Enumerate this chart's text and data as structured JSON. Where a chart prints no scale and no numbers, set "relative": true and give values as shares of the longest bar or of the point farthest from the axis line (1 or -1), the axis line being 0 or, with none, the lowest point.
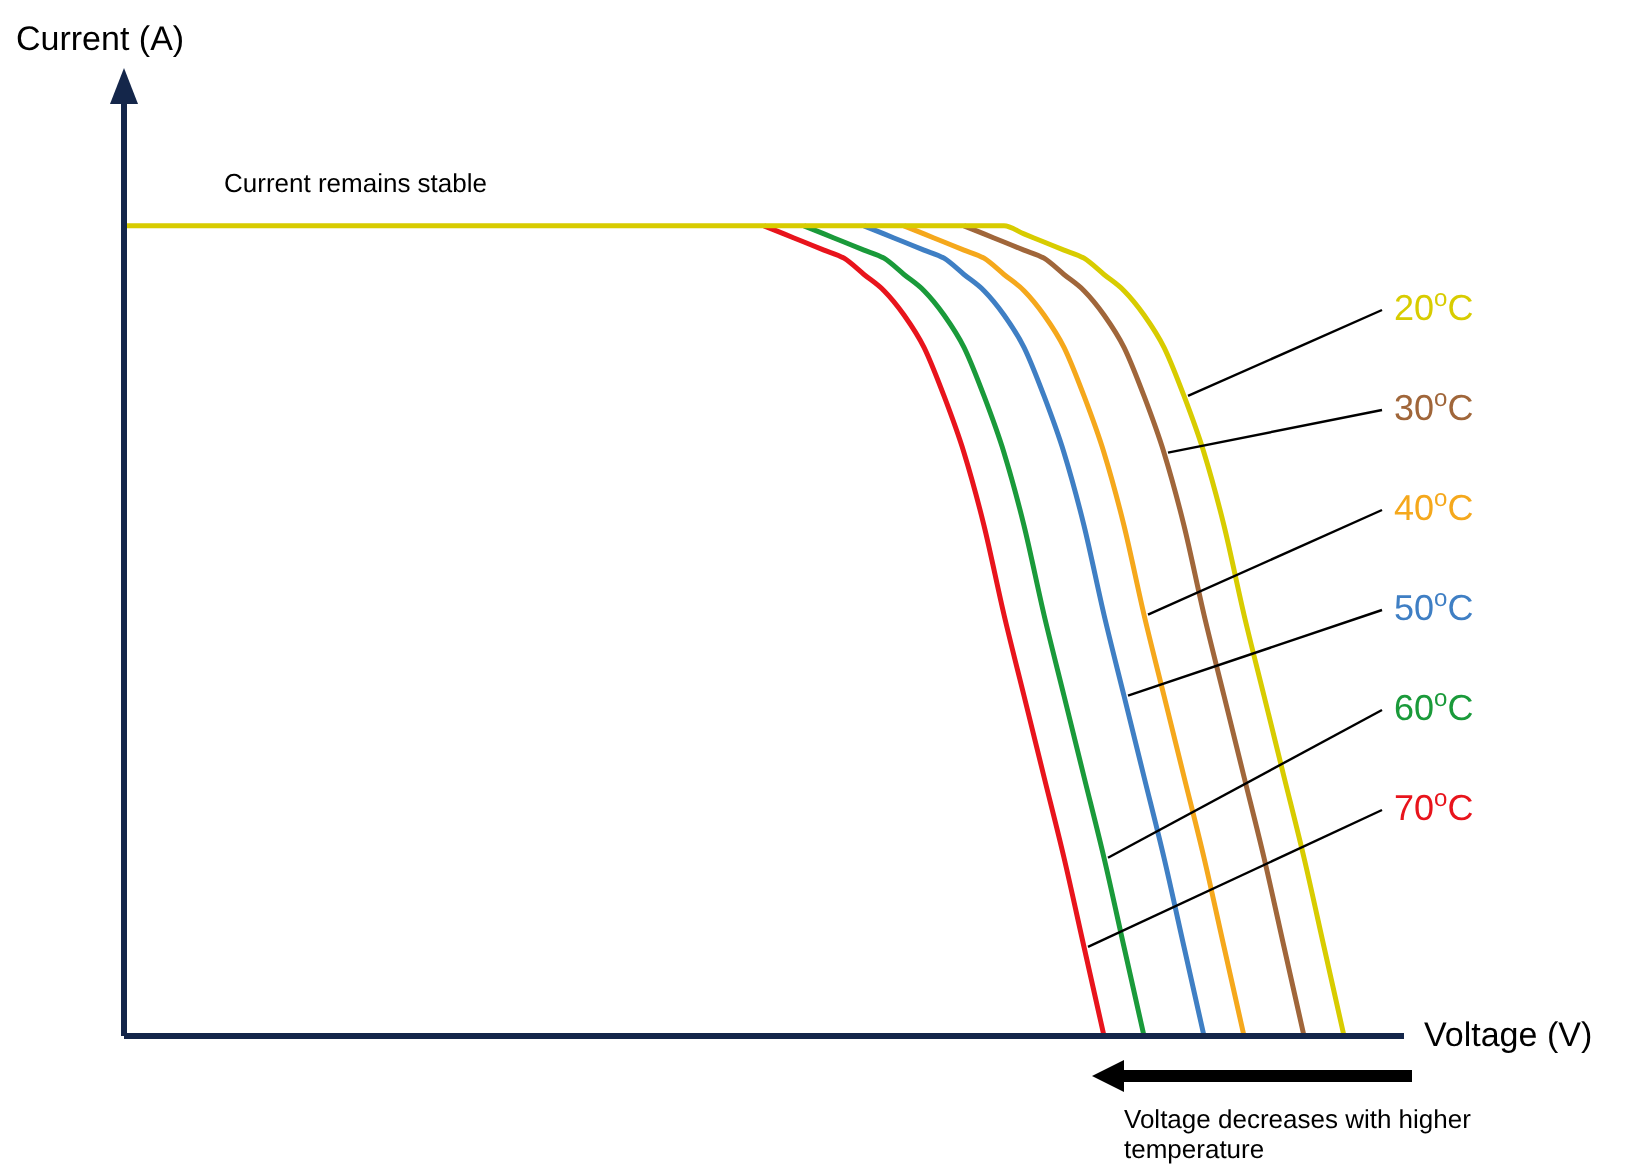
{
  "chart_data": {
    "type": "line",
    "relative": true,
    "marker": "none",
    "xlabel": "Voltage (V)",
    "ylabel": "Current (A)",
    "annotations": [
      "Current remains stable",
      "Voltage decreases with higher temperature"
    ],
    "categories": [
      null,
      null,
      null,
      null,
      null,
      null,
      null,
      null,
      null,
      null,
      null,
      null,
      null,
      null,
      null,
      null,
      null,
      null,
      null,
      null,
      null,
      null,
      null,
      null,
      null,
      null,
      null,
      null,
      null,
      null,
      null,
      null,
      null,
      null,
      null,
      null,
      null,
      null,
      null,
      null,
      null,
      null,
      null,
      null,
      null,
      null,
      null,
      null,
      null,
      null,
      null,
      null,
      null,
      null,
      null,
      null,
      null,
      null,
      null,
      null,
      null,
      null,
      null,
      null,
      null
    ],
    "series": [
      {
        "name": "20$^{o}$C",
        "color": "#d8cc00",
        "values": [
          1,
          1,
          1,
          1,
          1,
          1,
          1,
          1,
          1,
          1,
          1,
          1,
          1,
          1,
          1,
          1,
          1,
          1,
          1,
          1,
          1,
          1,
          1,
          1,
          1,
          1,
          1,
          1,
          1,
          1,
          1,
          1,
          1,
          1,
          1,
          1,
          1,
          1,
          1,
          1,
          1,
          1,
          1,
          1,
          1,
          0.99,
          0.98,
          0.97,
          0.96,
          0.94,
          0.92,
          0.89,
          0.85,
          0.79,
          0.72,
          0.63,
          0.52,
          0.42,
          0.32,
          0.22,
          0.11,
          0,
          null,
          null,
          null
        ]
      },
      {
        "name": "30$^{o}$C",
        "color": "#a0663a",
        "values": [
          null,
          null,
          null,
          null,
          null,
          null,
          null,
          null,
          null,
          null,
          null,
          null,
          null,
          null,
          null,
          null,
          null,
          null,
          null,
          null,
          null,
          null,
          null,
          null,
          null,
          null,
          null,
          null,
          null,
          null,
          null,
          null,
          null,
          null,
          null,
          null,
          null,
          null,
          null,
          null,
          null,
          null,
          1,
          0.99,
          0.98,
          0.97,
          0.96,
          0.94,
          0.92,
          0.89,
          0.85,
          0.79,
          0.72,
          0.63,
          0.52,
          0.42,
          0.32,
          0.22,
          0.11,
          0,
          null,
          null,
          null,
          null,
          null
        ]
      },
      {
        "name": "40$^{o}$C",
        "color": "#f5a81c",
        "values": [
          null,
          null,
          null,
          null,
          null,
          null,
          null,
          null,
          null,
          null,
          null,
          null,
          null,
          null,
          null,
          null,
          null,
          null,
          null,
          null,
          null,
          null,
          null,
          null,
          null,
          null,
          null,
          null,
          null,
          null,
          null,
          null,
          null,
          null,
          null,
          null,
          null,
          null,
          null,
          1,
          0.99,
          0.98,
          0.97,
          0.96,
          0.94,
          0.92,
          0.89,
          0.85,
          0.79,
          0.72,
          0.63,
          0.52,
          0.42,
          0.32,
          0.22,
          0.11,
          0,
          null,
          null,
          null,
          null,
          null,
          null,
          null,
          null
        ]
      },
      {
        "name": "50$^{o}$C",
        "color": "#3f7fc4",
        "values": [
          null,
          null,
          null,
          null,
          null,
          null,
          null,
          null,
          null,
          null,
          null,
          null,
          null,
          null,
          null,
          null,
          null,
          null,
          null,
          null,
          null,
          null,
          null,
          null,
          null,
          null,
          null,
          null,
          null,
          null,
          null,
          null,
          null,
          null,
          null,
          null,
          null,
          1,
          0.99,
          0.98,
          0.97,
          0.96,
          0.94,
          0.92,
          0.89,
          0.85,
          0.79,
          0.72,
          0.63,
          0.52,
          0.42,
          0.32,
          0.22,
          0.11,
          0,
          null,
          null,
          null,
          null,
          null,
          null,
          null,
          null,
          null,
          null
        ]
      },
      {
        "name": "60$^{o}$C",
        "color": "#1a9a3a",
        "values": [
          null,
          null,
          null,
          null,
          null,
          null,
          null,
          null,
          null,
          null,
          null,
          null,
          null,
          null,
          null,
          null,
          null,
          null,
          null,
          null,
          null,
          null,
          null,
          null,
          null,
          null,
          null,
          null,
          null,
          null,
          null,
          null,
          null,
          null,
          1,
          0.99,
          0.98,
          0.97,
          0.96,
          0.94,
          0.92,
          0.89,
          0.85,
          0.79,
          0.72,
          0.63,
          0.52,
          0.42,
          0.32,
          0.22,
          0.11,
          0,
          null,
          null,
          null,
          null,
          null,
          null,
          null,
          null,
          null,
          null,
          null,
          null,
          null
        ]
      },
      {
        "name": "70$^{o}$C",
        "color": "#e8141c",
        "values": [
          null,
          null,
          null,
          null,
          null,
          null,
          null,
          null,
          null,
          null,
          null,
          null,
          null,
          null,
          null,
          null,
          null,
          null,
          null,
          null,
          null,
          null,
          null,
          null,
          null,
          null,
          null,
          null,
          null,
          null,
          null,
          null,
          1,
          0.99,
          0.98,
          0.97,
          0.96,
          0.94,
          0.92,
          0.89,
          0.85,
          0.79,
          0.72,
          0.63,
          0.52,
          0.42,
          0.32,
          0.22,
          0.11,
          0,
          null,
          null,
          null,
          null,
          null,
          null,
          null,
          null,
          null,
          null,
          null,
          null,
          null,
          null,
          null
        ]
      }
    ]
  }
}
